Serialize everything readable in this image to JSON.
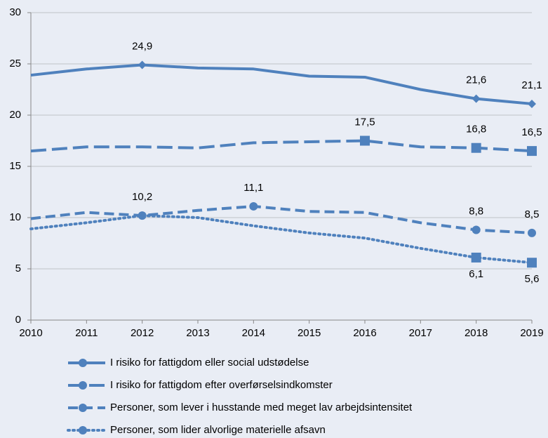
{
  "chart_data": {
    "type": "line",
    "x": [
      2010,
      2011,
      2012,
      2013,
      2014,
      2015,
      2016,
      2017,
      2018,
      2019
    ],
    "xlim": [
      2010,
      2019
    ],
    "xticks": [
      2010,
      2011,
      2012,
      2013,
      2014,
      2015,
      2016,
      2017,
      2018,
      2019
    ],
    "ylim": [
      0,
      30
    ],
    "yticks": [
      0,
      5,
      10,
      15,
      20,
      25,
      30
    ],
    "grid": true,
    "legend": "bottom",
    "series": [
      {
        "name": "I risiko for fattigdom eller social udstødelse",
        "color": "#4f81bd",
        "dash": "solid",
        "marker": "diamond",
        "label_position": "above",
        "values": [
          23.9,
          24.5,
          24.9,
          24.6,
          24.5,
          23.8,
          23.7,
          22.5,
          21.6,
          21.1
        ],
        "value_labels": [
          null,
          null,
          "24,9",
          null,
          null,
          null,
          null,
          null,
          "21,6",
          "21,1"
        ]
      },
      {
        "name": "I risiko for fattigdom efter overførselsindkomster",
        "color": "#4f81bd",
        "dash": "longdash",
        "marker": "square",
        "label_position": "above",
        "values": [
          16.5,
          16.9,
          16.9,
          16.8,
          17.3,
          17.4,
          17.5,
          16.9,
          16.8,
          16.5
        ],
        "value_labels": [
          null,
          null,
          null,
          null,
          null,
          null,
          "17,5",
          null,
          "16,8",
          "16,5"
        ]
      },
      {
        "name": "Personer, som lever i husstande med meget lav arbejdsintensitet",
        "color": "#4f81bd",
        "dash": "dash",
        "marker": "circle",
        "label_position": "above",
        "values": [
          9.9,
          10.5,
          10.2,
          10.7,
          11.1,
          10.6,
          10.5,
          9.5,
          8.8,
          8.5
        ],
        "value_labels": [
          null,
          null,
          "10,2",
          null,
          "11,1",
          null,
          null,
          null,
          "8,8",
          "8,5"
        ]
      },
      {
        "name": "Personer, som lider alvorlige materielle afsavn",
        "color": "#4f81bd",
        "dash": "dot",
        "marker": "square",
        "label_position": "below",
        "values": [
          8.9,
          9.5,
          10.2,
          10.0,
          9.2,
          8.5,
          8.0,
          7.0,
          6.1,
          5.6
        ],
        "value_labels": [
          null,
          null,
          null,
          null,
          null,
          null,
          null,
          null,
          "6,1",
          "5,6"
        ]
      }
    ]
  }
}
